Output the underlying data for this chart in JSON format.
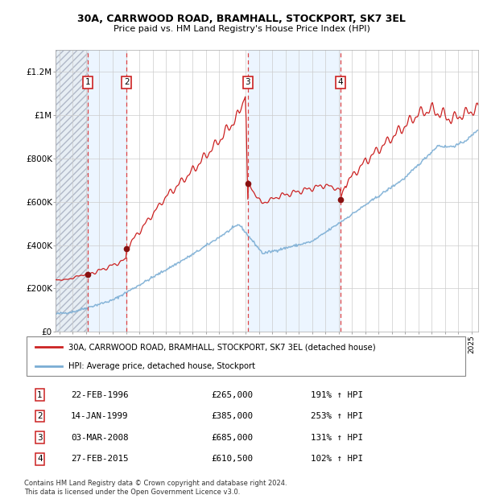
{
  "title1": "30A, CARRWOOD ROAD, BRAMHALL, STOCKPORT, SK7 3EL",
  "title2": "Price paid vs. HM Land Registry's House Price Index (HPI)",
  "ylabel_ticks": [
    "£0",
    "£200K",
    "£400K",
    "£600K",
    "£800K",
    "£1M",
    "£1.2M"
  ],
  "ytick_values": [
    0,
    200000,
    400000,
    600000,
    800000,
    1000000,
    1200000
  ],
  "ylim": [
    0,
    1300000
  ],
  "xlim_start": 1993.7,
  "xlim_end": 2025.5,
  "sale_points": [
    {
      "label": "1",
      "date": 1996.13,
      "price": 265000
    },
    {
      "label": "2",
      "date": 1999.04,
      "price": 385000
    },
    {
      "label": "3",
      "date": 2008.17,
      "price": 685000
    },
    {
      "label": "4",
      "date": 2015.15,
      "price": 610500
    }
  ],
  "hpi_color": "#7aadd4",
  "sale_line_color": "#cc2222",
  "sale_dot_color": "#881111",
  "dashed_line_color": "#dd4444",
  "grid_color": "#cccccc",
  "label_box_color": "#cc2222",
  "legend_entries": [
    "30A, CARRWOOD ROAD, BRAMHALL, STOCKPORT, SK7 3EL (detached house)",
    "HPI: Average price, detached house, Stockport"
  ],
  "table_rows": [
    {
      "num": "1",
      "date": "22-FEB-1996",
      "price": "£265,000",
      "hpi": "191% ↑ HPI"
    },
    {
      "num": "2",
      "date": "14-JAN-1999",
      "price": "£385,000",
      "hpi": "253% ↑ HPI"
    },
    {
      "num": "3",
      "date": "03-MAR-2008",
      "price": "£685,000",
      "hpi": "131% ↑ HPI"
    },
    {
      "num": "4",
      "date": "27-FEB-2015",
      "price": "£610,500",
      "hpi": "102% ↑ HPI"
    }
  ],
  "footer_text": "Contains HM Land Registry data © Crown copyright and database right 2024.\nThis data is licensed under the Open Government Licence v3.0."
}
